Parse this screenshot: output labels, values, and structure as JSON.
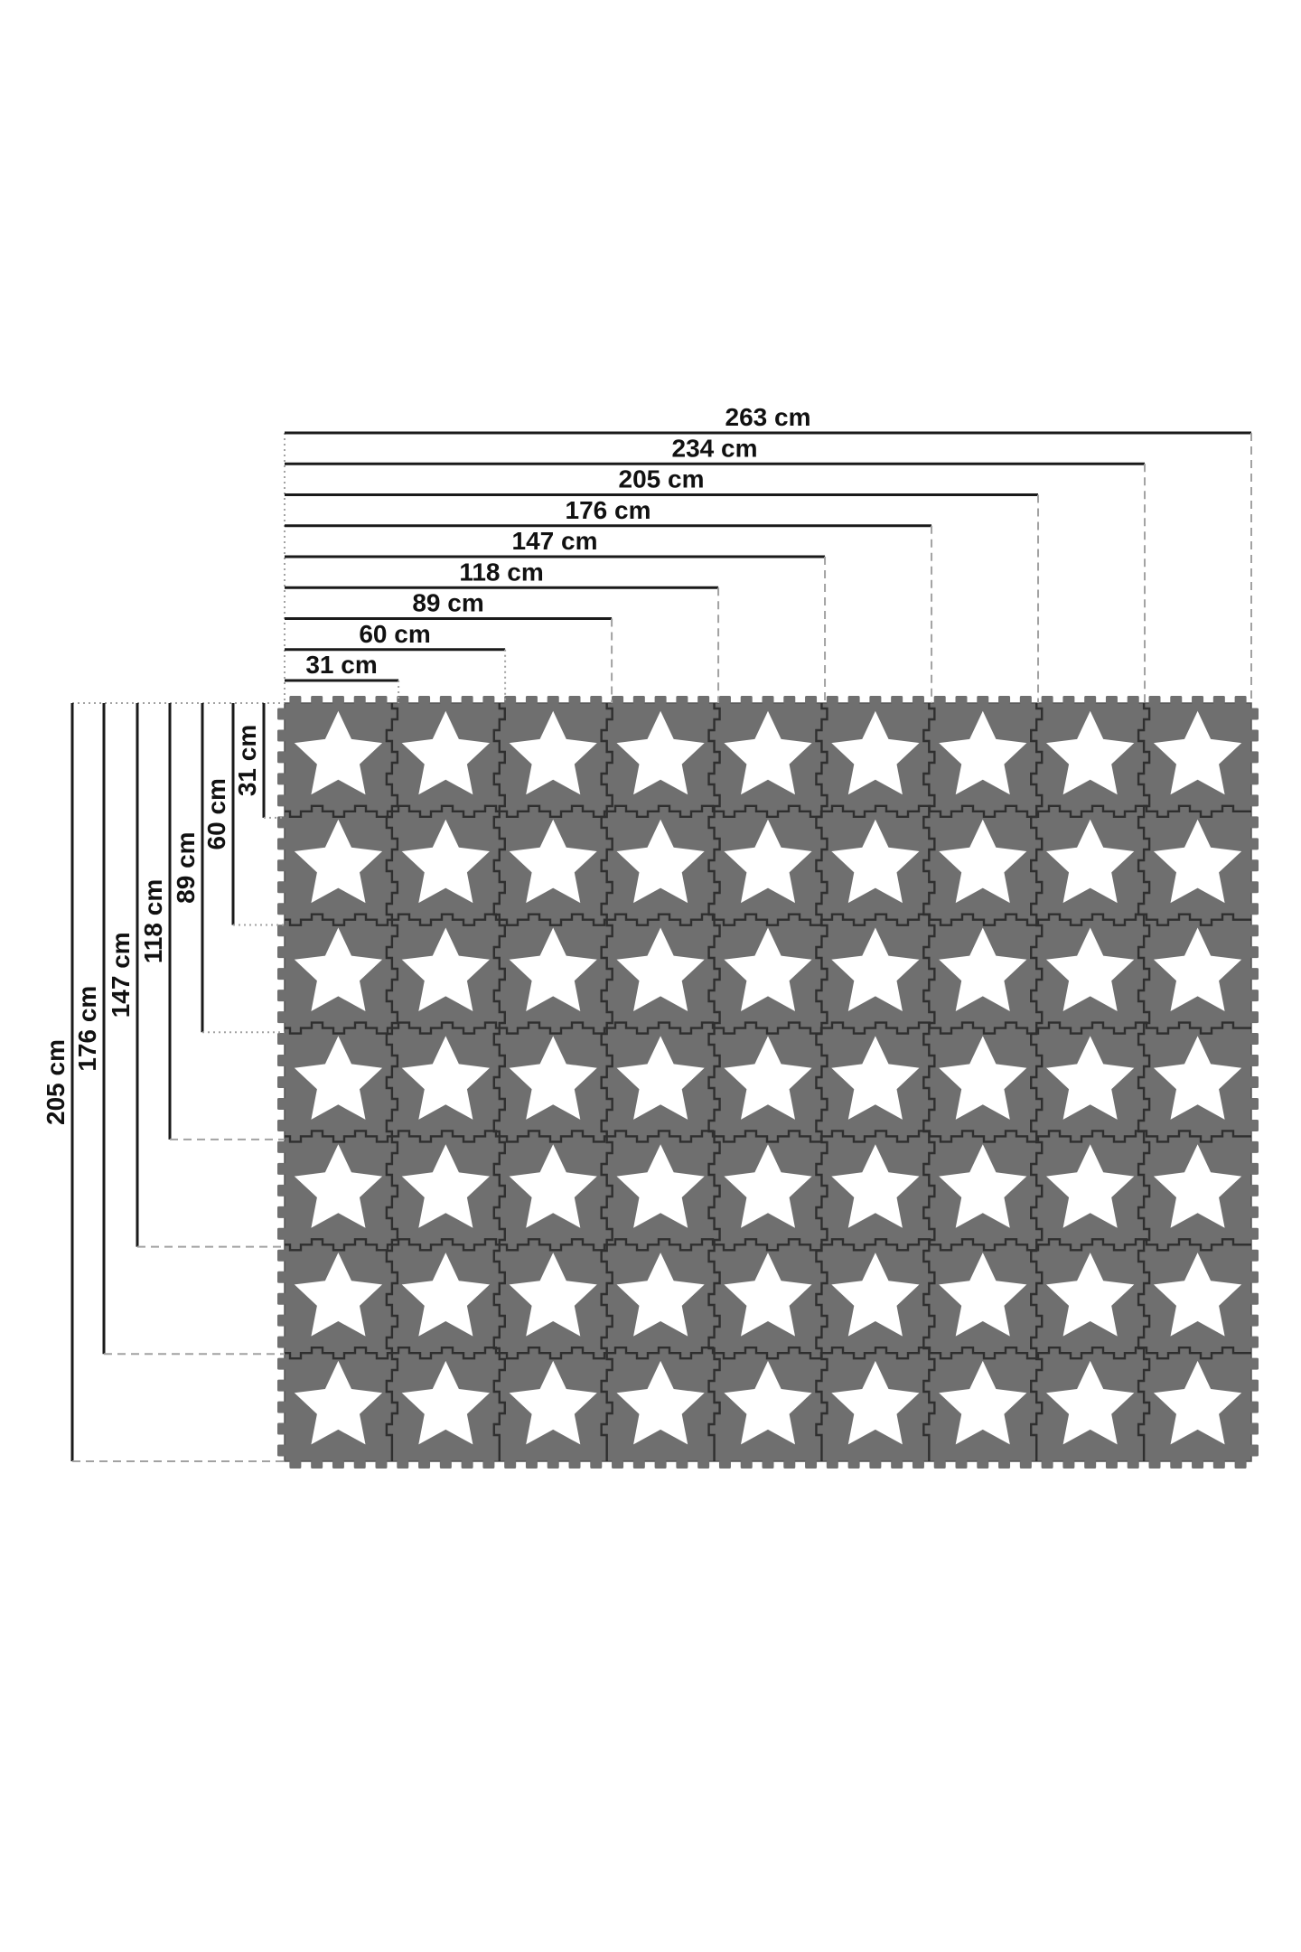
{
  "diagram": {
    "unit": "cm",
    "top_dimensions": [
      {
        "label": "263 cm",
        "cm": 263
      },
      {
        "label": "234 cm",
        "cm": 234
      },
      {
        "label": "205 cm",
        "cm": 205
      },
      {
        "label": "176 cm",
        "cm": 176
      },
      {
        "label": "147 cm",
        "cm": 147
      },
      {
        "label": "118 cm",
        "cm": 118
      },
      {
        "label": "89 cm",
        "cm": 89
      },
      {
        "label": "60 cm",
        "cm": 60
      },
      {
        "label": "31 cm",
        "cm": 31
      }
    ],
    "left_dimensions": [
      {
        "label": "205 cm",
        "cm": 205
      },
      {
        "label": "176 cm",
        "cm": 176
      },
      {
        "label": "147 cm",
        "cm": 147
      },
      {
        "label": "118 cm",
        "cm": 118
      },
      {
        "label": "89 cm",
        "cm": 89
      },
      {
        "label": "60 cm",
        "cm": 60
      },
      {
        "label": "31 cm",
        "cm": 31
      }
    ],
    "mat": {
      "rows": 7,
      "columns": 9,
      "tiles_total": 63,
      "tile_icon": "star-icon",
      "tile_color": "#6f6f6f",
      "seam_color": "#2f2f2f",
      "star_color": "#ffffff"
    },
    "colors": {
      "background": "#ffffff",
      "dimension_line": "#1a1a1a",
      "extension_line": "#a2a2a2",
      "label_text": "#111111"
    }
  }
}
